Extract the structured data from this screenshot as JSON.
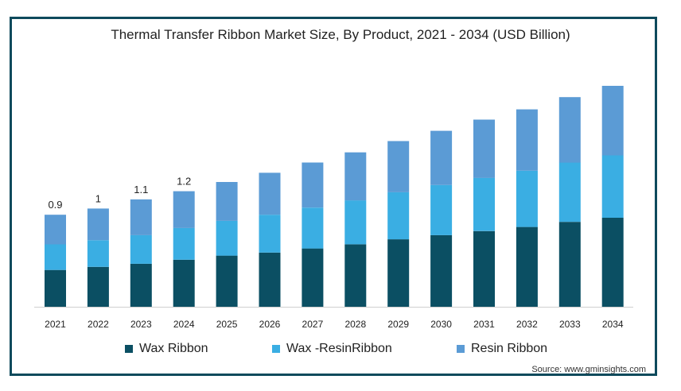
{
  "chart_data": {
    "type": "bar",
    "stacked": true,
    "title": "Thermal Transfer Ribbon Market Size, By Product, 2021 - 2034 (USD Billion)",
    "categories": [
      "2021",
      "2022",
      "2023",
      "2024",
      "2025",
      "2026",
      "2027",
      "2028",
      "2029",
      "2030",
      "2031",
      "2032",
      "2033",
      "2034"
    ],
    "series": [
      {
        "name": "Wax Ribbon",
        "color": "#0b4f63",
        "values": [
          0.36,
          0.39,
          0.42,
          0.46,
          0.5,
          0.53,
          0.57,
          0.61,
          0.66,
          0.7,
          0.74,
          0.78,
          0.83,
          0.87
        ]
      },
      {
        "name": "Wax -ResinRibbon",
        "color": "#3aaee3",
        "values": [
          0.25,
          0.26,
          0.28,
          0.31,
          0.34,
          0.37,
          0.4,
          0.43,
          0.46,
          0.49,
          0.52,
          0.55,
          0.58,
          0.61
        ]
      },
      {
        "name": "Resin Ribbon",
        "color": "#5b9bd5",
        "values": [
          0.29,
          0.31,
          0.35,
          0.36,
          0.38,
          0.41,
          0.44,
          0.47,
          0.5,
          0.53,
          0.57,
          0.6,
          0.64,
          0.68
        ]
      }
    ],
    "data_labels": [
      {
        "category": "2021",
        "text": "0.9"
      },
      {
        "category": "2022",
        "text": "1"
      },
      {
        "category": "2023",
        "text": "1.1"
      },
      {
        "category": "2024",
        "text": "1.2"
      }
    ],
    "ylim": [
      0,
      2.16
    ],
    "grid": false,
    "legend": "bottom"
  },
  "source": "Source: www.gminsights.com"
}
